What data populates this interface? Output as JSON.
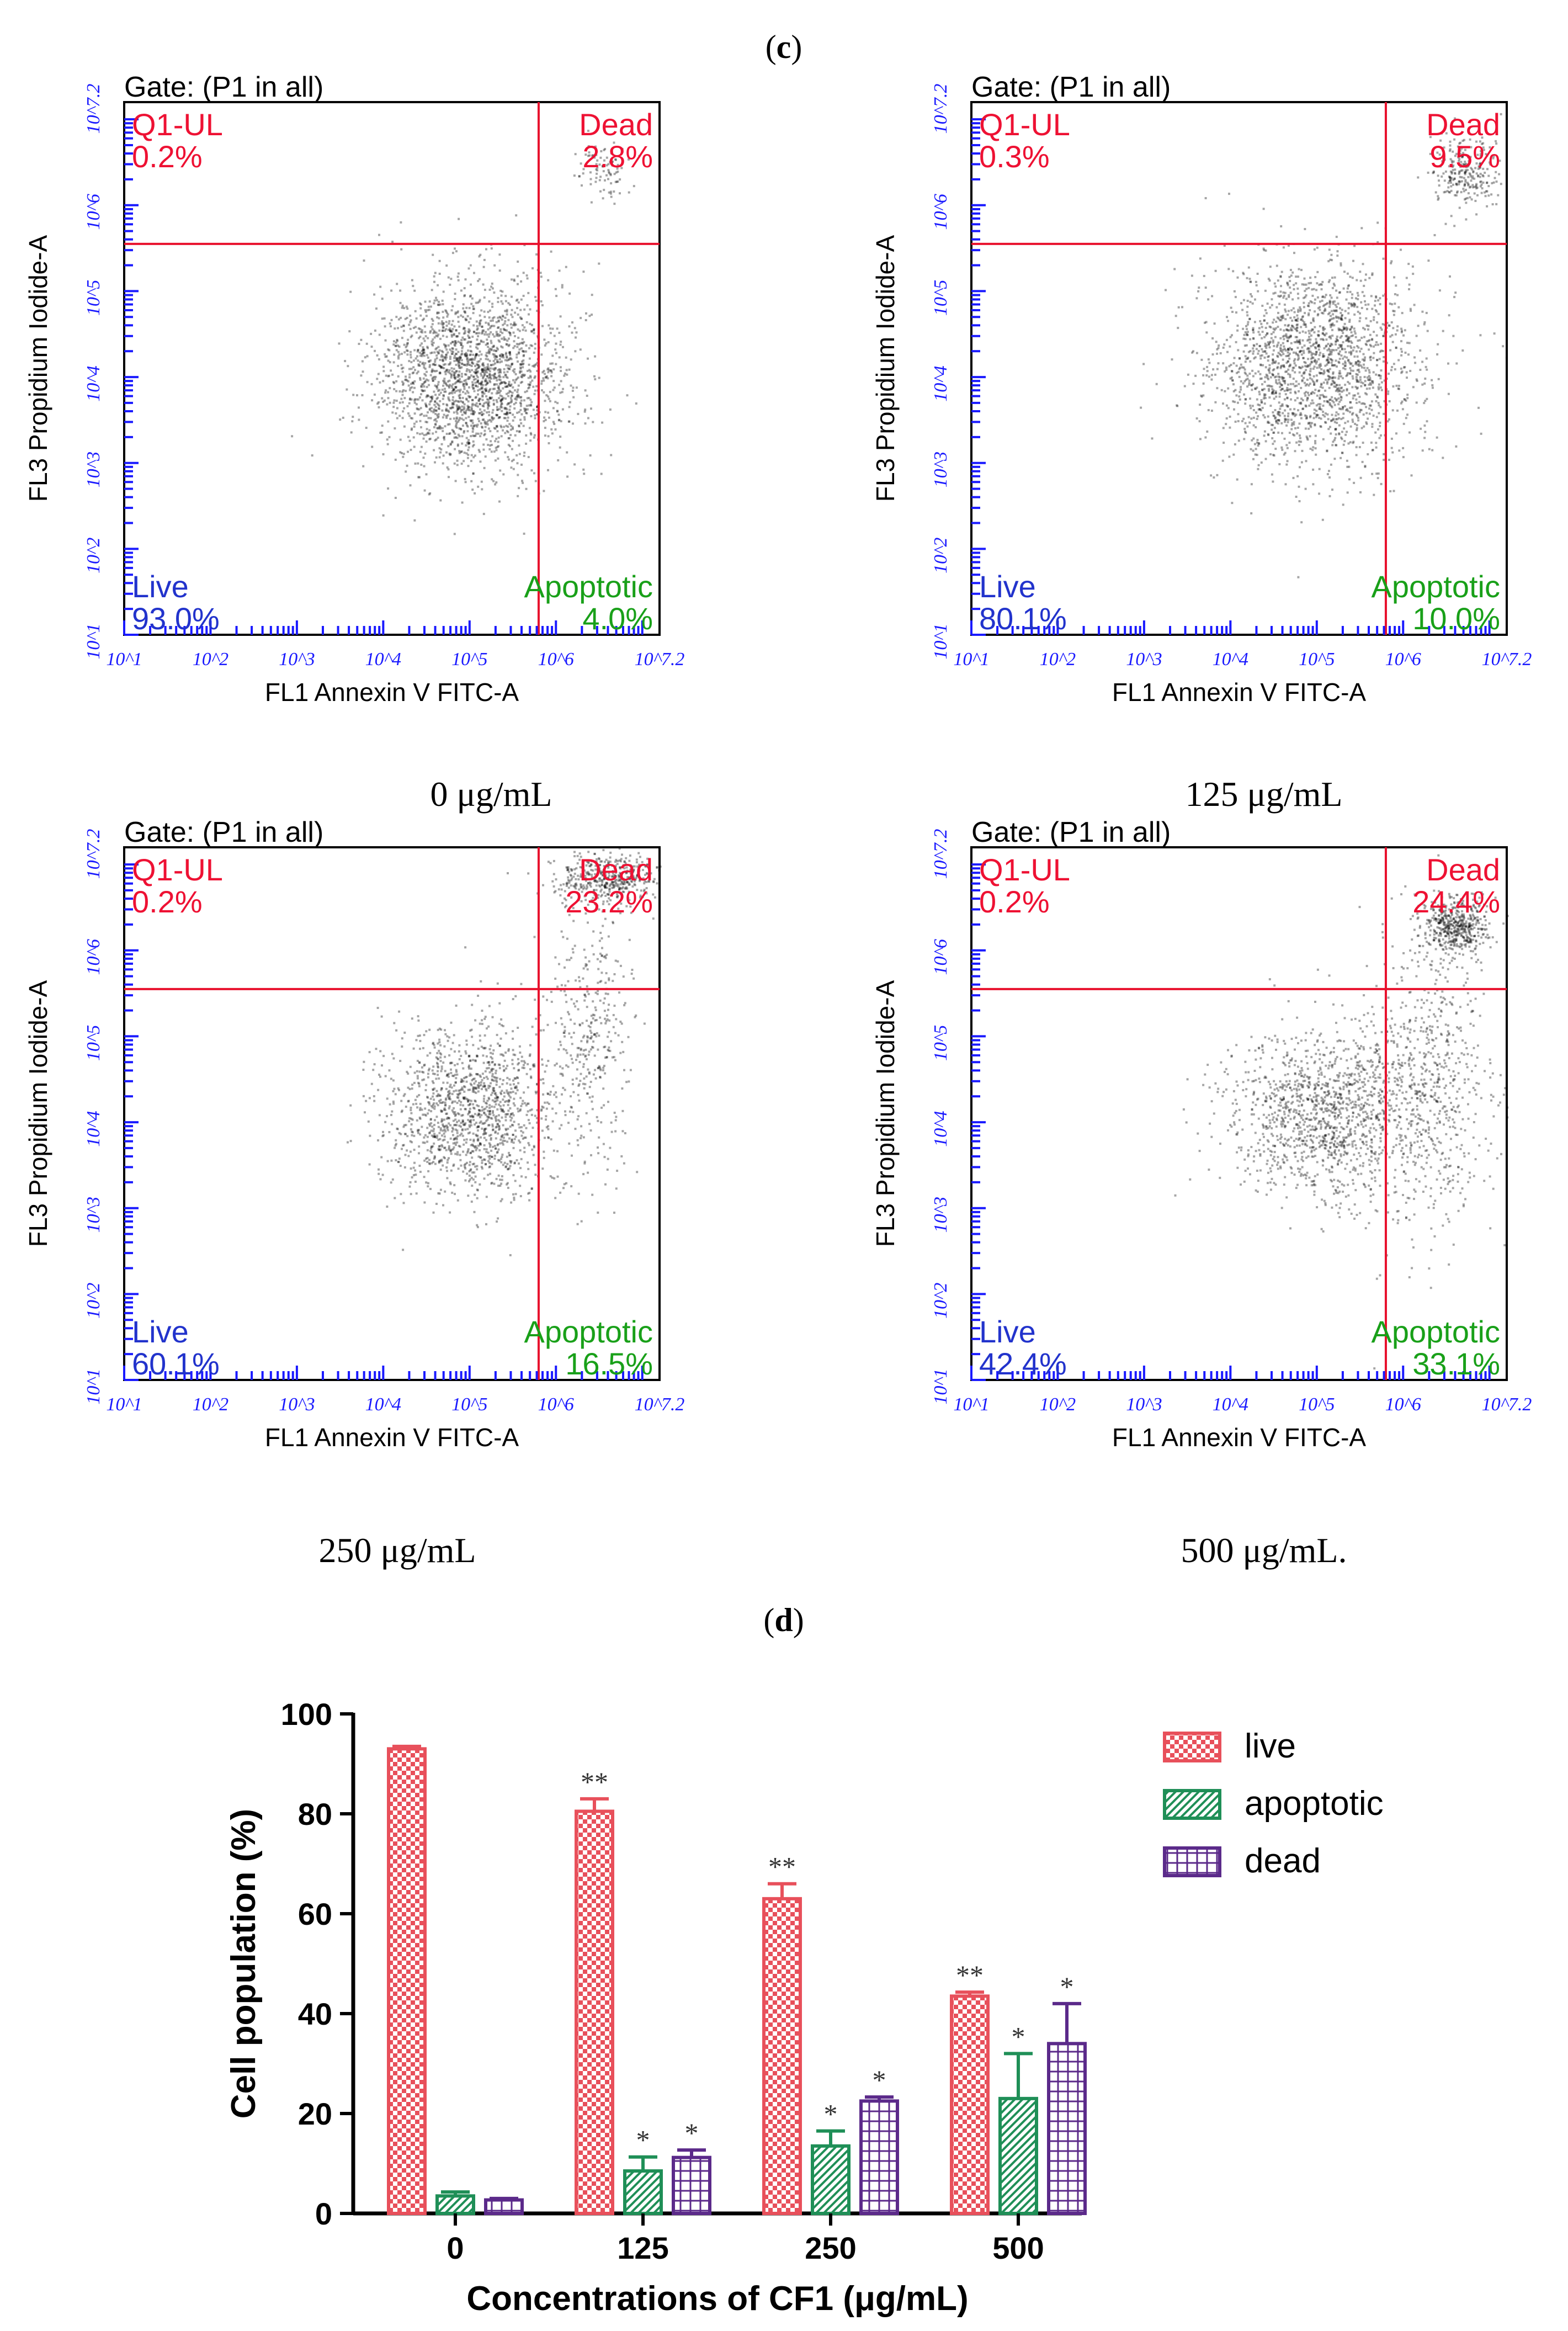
{
  "figure_labels": {
    "c": "c",
    "d": "d"
  },
  "colors": {
    "quadrant_line": "#e8112d",
    "axis_blue": "#1a1aff",
    "q1_red": "#ee1133",
    "live_blue": "#2233cc",
    "apoptotic_green": "#19a019",
    "live_bar": "#e8505b",
    "apoptotic_bar": "#1f8f57",
    "dead_bar": "#5b2a8a"
  },
  "chart_data": [
    {
      "type": "scatter",
      "panel": "c-1",
      "caption": "0 μg/mL",
      "gate": "Gate: (P1 in all)",
      "xlabel": "FL1 Annexin V FITC-A",
      "ylabel": "FL3 Propidium Iodide-A",
      "xlim": [
        1,
        7.2
      ],
      "ylim": [
        1,
        7.2
      ],
      "scale": "log10",
      "ticks": [
        "10^1",
        "10^2",
        "10^3",
        "10^4",
        "10^5",
        "10^6",
        "10^7.2"
      ],
      "quadrant_gate": {
        "x": 5.8,
        "y": 5.55
      },
      "quadrants": [
        {
          "name": "Q1-UL",
          "value": "0.2%"
        },
        {
          "name": "Dead",
          "value": "2.8%"
        },
        {
          "name": "Live",
          "value": "93.0%"
        },
        {
          "name": "Apoptotic",
          "value": "4.0%"
        }
      ],
      "clusters": [
        {
          "cx": 5.0,
          "cy": 4.0,
          "sx": 0.55,
          "sy": 0.55,
          "n": 2200
        },
        {
          "cx": 6.55,
          "cy": 6.45,
          "sx": 0.15,
          "sy": 0.18,
          "n": 90
        }
      ]
    },
    {
      "type": "scatter",
      "panel": "c-2",
      "caption": "125 μg/mL",
      "gate": "Gate: (P1 in all)",
      "xlabel": "FL1 Annexin V FITC-A",
      "ylabel": "FL3 Propidium Iodide-A",
      "xlim": [
        1,
        7.2
      ],
      "ylim": [
        1,
        7.2
      ],
      "scale": "log10",
      "ticks": [
        "10^1",
        "10^2",
        "10^3",
        "10^4",
        "10^5",
        "10^6",
        "10^7.2"
      ],
      "quadrant_gate": {
        "x": 5.8,
        "y": 5.55
      },
      "quadrants": [
        {
          "name": "Q1-UL",
          "value": "0.3%"
        },
        {
          "name": "Dead",
          "value": "9.5%"
        },
        {
          "name": "Live",
          "value": "80.1%"
        },
        {
          "name": "Apoptotic",
          "value": "10.0%"
        }
      ],
      "clusters": [
        {
          "cx": 4.95,
          "cy": 4.15,
          "sx": 0.6,
          "sy": 0.6,
          "n": 2000
        },
        {
          "cx": 6.7,
          "cy": 6.4,
          "sx": 0.2,
          "sy": 0.22,
          "n": 260
        }
      ]
    },
    {
      "type": "scatter",
      "panel": "c-3",
      "caption": "250 μg/mL",
      "gate": "Gate: (P1 in all)",
      "xlabel": "FL1 Annexin V FITC-A",
      "ylabel": "FL3 Propidium Iodide-A",
      "xlim": [
        1,
        7.2
      ],
      "ylim": [
        1,
        7.2
      ],
      "scale": "log10",
      "ticks": [
        "10^1",
        "10^2",
        "10^3",
        "10^4",
        "10^5",
        "10^6",
        "10^7.2"
      ],
      "quadrant_gate": {
        "x": 5.8,
        "y": 5.55
      },
      "quadrants": [
        {
          "name": "Q1-UL",
          "value": "0.2%"
        },
        {
          "name": "Dead",
          "value": "23.2%"
        },
        {
          "name": "Live",
          "value": "60.1%"
        },
        {
          "name": "Apoptotic",
          "value": "16.5%"
        }
      ],
      "clusters": [
        {
          "cx": 5.0,
          "cy": 4.15,
          "sx": 0.5,
          "sy": 0.5,
          "n": 1400
        },
        {
          "cx": 6.6,
          "cy": 6.85,
          "sx": 0.3,
          "sy": 0.15,
          "n": 450
        },
        {
          "cx": 6.4,
          "cy": 5.0,
          "sx": 0.22,
          "sy": 0.8,
          "n": 350
        }
      ]
    },
    {
      "type": "scatter",
      "panel": "c-4",
      "caption": "500 μg/mL.",
      "gate": "Gate: (P1 in all)",
      "xlabel": "FL1 Annexin V FITC-A",
      "ylabel": "FL3 Propidium Iodide-A",
      "xlim": [
        1,
        7.2
      ],
      "ylim": [
        1,
        7.2
      ],
      "scale": "log10",
      "ticks": [
        "10^1",
        "10^2",
        "10^3",
        "10^4",
        "10^5",
        "10^6",
        "10^7.2"
      ],
      "quadrant_gate": {
        "x": 5.8,
        "y": 5.55
      },
      "quadrants": [
        {
          "name": "Q1-UL",
          "value": "0.2%"
        },
        {
          "name": "Dead",
          "value": "24.4%"
        },
        {
          "name": "Live",
          "value": "42.4%"
        },
        {
          "name": "Apoptotic",
          "value": "33.1%"
        }
      ],
      "clusters": [
        {
          "cx": 5.1,
          "cy": 4.1,
          "sx": 0.55,
          "sy": 0.5,
          "n": 1300
        },
        {
          "cx": 6.6,
          "cy": 6.3,
          "sx": 0.2,
          "sy": 0.18,
          "n": 500
        },
        {
          "cx": 6.3,
          "cy": 4.4,
          "sx": 0.35,
          "sy": 0.9,
          "n": 650
        }
      ]
    },
    {
      "type": "bar",
      "panel": "d",
      "xlabel": "Concentrations of CF1 (μg/mL)",
      "ylabel": "Cell population (%)",
      "categories": [
        "0",
        "125",
        "250",
        "500"
      ],
      "ylim": [
        0,
        100
      ],
      "yticks": [
        0,
        20,
        40,
        60,
        80,
        100
      ],
      "series": [
        {
          "name": "live",
          "values": [
            93,
            80.5,
            63,
            43.5
          ],
          "errors": [
            0.5,
            2.5,
            3,
            0.8
          ],
          "signif": [
            "",
            "**",
            "**",
            "**"
          ]
        },
        {
          "name": "apoptotic",
          "values": [
            3.5,
            8.5,
            13.5,
            23
          ],
          "errors": [
            0.8,
            2.8,
            3,
            9
          ],
          "signif": [
            "",
            "*",
            "*",
            "*"
          ]
        },
        {
          "name": "dead",
          "values": [
            2.7,
            11.2,
            22.5,
            34
          ],
          "errors": [
            0.3,
            1.5,
            0.8,
            8
          ],
          "signif": [
            "",
            "*",
            "*",
            "*"
          ]
        }
      ]
    }
  ]
}
